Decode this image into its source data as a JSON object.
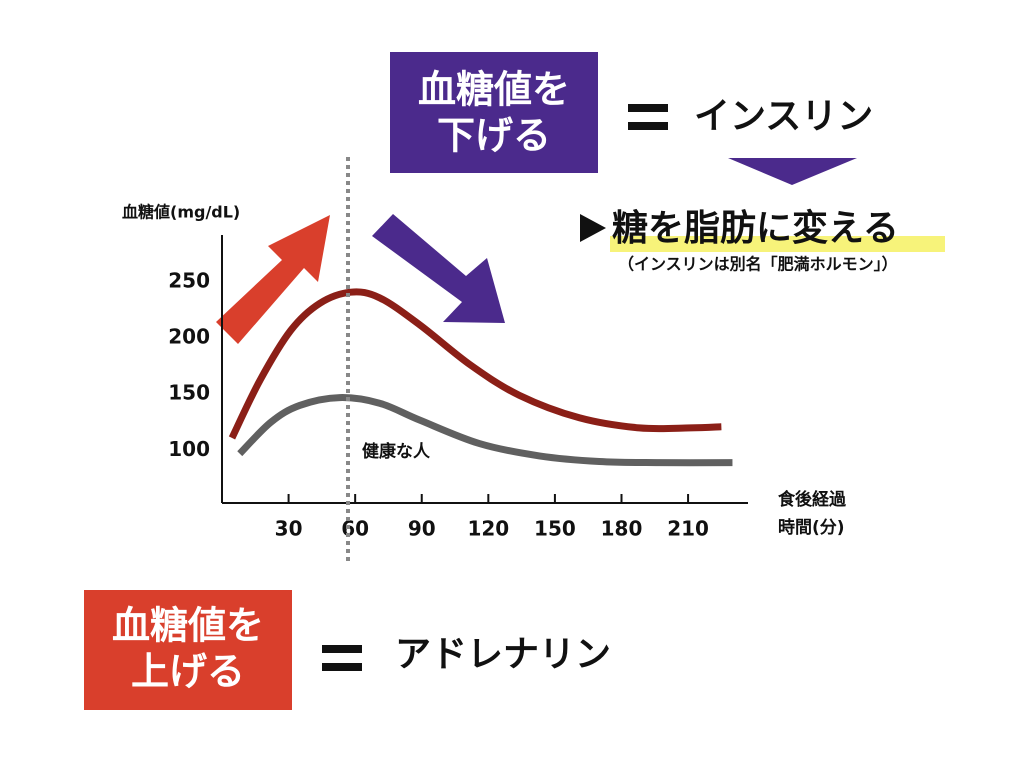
{
  "chart_data": {
    "type": "line",
    "y_label": "血糖値(mg/dL)",
    "x_label": [
      "食後経過",
      "時間(分)"
    ],
    "xlim": [
      0,
      237
    ],
    "ylim": [
      53,
      292
    ],
    "xticks": [
      30,
      60,
      90,
      120,
      150,
      180,
      210
    ],
    "yticks": [
      100,
      150,
      200,
      250
    ],
    "series": [
      {
        "color": "#8b1f17",
        "x": [
          4.5,
          17,
          31,
          44,
          58,
          71,
          89,
          112,
          134,
          161,
          188,
          211,
          225
        ],
        "values": [
          111,
          162,
          207,
          231,
          241,
          236,
          212,
          176,
          149,
          129,
          120,
          120,
          121
        ]
      },
      {
        "name": "健康な人",
        "color": "#606060",
        "x": [
          8,
          22,
          35,
          53,
          71,
          89,
          116,
          143,
          170,
          197,
          230
        ],
        "values": [
          97,
          125,
          140,
          147,
          142,
          127,
          106,
          95,
          90,
          89,
          89
        ]
      }
    ]
  },
  "slide": {
    "lower_box": [
      "血糖値を",
      "下げる"
    ],
    "lower_hormone": "インスリン",
    "insulin_effect": "糖を脂肪に変える",
    "insulin_note": "（インスリンは別名「肥満ホルモン」）",
    "raise_box": [
      "血糖値を",
      "上げる"
    ],
    "raise_hormone": "アドレナリン"
  }
}
